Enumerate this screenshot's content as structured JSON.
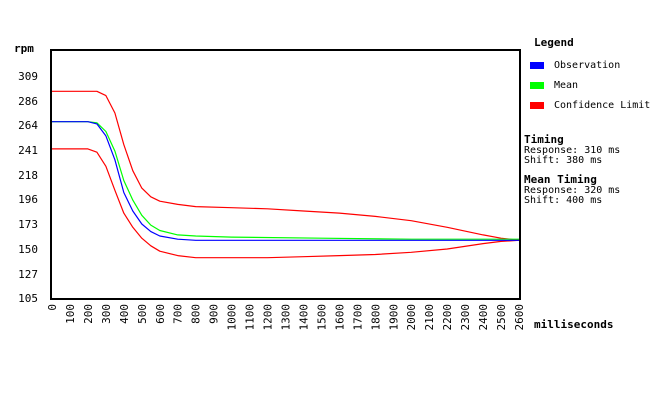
{
  "chart_data": {
    "type": "line",
    "ylabel": "rpm",
    "xlabel": "milliseconds",
    "xlim": [
      0,
      2600
    ],
    "ylim": [
      105,
      332
    ],
    "y_ticks": [
      105,
      127,
      150,
      173,
      196,
      218,
      241,
      264,
      286,
      309
    ],
    "x_ticks": [
      0,
      100,
      200,
      300,
      400,
      500,
      600,
      700,
      800,
      900,
      1000,
      1100,
      1200,
      1300,
      1400,
      1500,
      1600,
      1700,
      1800,
      1900,
      2000,
      2100,
      2200,
      2300,
      2400,
      2500,
      2600
    ],
    "grid": false,
    "legend_position": "right",
    "series": [
      {
        "name": "Observation",
        "color": "#0000ff",
        "points": [
          [
            0,
            267
          ],
          [
            100,
            267
          ],
          [
            200,
            267
          ],
          [
            250,
            265
          ],
          [
            300,
            254
          ],
          [
            350,
            232
          ],
          [
            400,
            202
          ],
          [
            450,
            185
          ],
          [
            500,
            173
          ],
          [
            550,
            166
          ],
          [
            600,
            162
          ],
          [
            700,
            159
          ],
          [
            800,
            158
          ],
          [
            1000,
            158
          ],
          [
            1500,
            158
          ],
          [
            2000,
            158
          ],
          [
            2500,
            158
          ],
          [
            2600,
            158
          ]
        ]
      },
      {
        "name": "Mean",
        "color": "#00ff00",
        "points": [
          [
            0,
            267
          ],
          [
            100,
            267
          ],
          [
            200,
            267
          ],
          [
            250,
            266
          ],
          [
            300,
            258
          ],
          [
            350,
            240
          ],
          [
            400,
            213
          ],
          [
            450,
            195
          ],
          [
            500,
            181
          ],
          [
            550,
            172
          ],
          [
            600,
            167
          ],
          [
            700,
            163
          ],
          [
            800,
            162
          ],
          [
            1000,
            161
          ],
          [
            1500,
            160
          ],
          [
            2000,
            159
          ],
          [
            2500,
            159
          ],
          [
            2600,
            159
          ]
        ]
      },
      {
        "name": "Confidence Limit",
        "color": "#ff0000",
        "points": [
          [
            0,
            295
          ],
          [
            100,
            295
          ],
          [
            200,
            295
          ],
          [
            250,
            295
          ],
          [
            300,
            291
          ],
          [
            350,
            275
          ],
          [
            400,
            246
          ],
          [
            450,
            222
          ],
          [
            500,
            206
          ],
          [
            550,
            198
          ],
          [
            600,
            194
          ],
          [
            700,
            191
          ],
          [
            800,
            189
          ],
          [
            1000,
            188
          ],
          [
            1200,
            187
          ],
          [
            1400,
            185
          ],
          [
            1600,
            183
          ],
          [
            1800,
            180
          ],
          [
            2000,
            176
          ],
          [
            2200,
            170
          ],
          [
            2400,
            163
          ],
          [
            2500,
            160
          ],
          [
            2600,
            158
          ]
        ]
      },
      {
        "name": "Confidence Limit",
        "color": "#ff0000",
        "points": [
          [
            0,
            242
          ],
          [
            100,
            242
          ],
          [
            200,
            242
          ],
          [
            250,
            239
          ],
          [
            300,
            226
          ],
          [
            350,
            204
          ],
          [
            400,
            183
          ],
          [
            450,
            170
          ],
          [
            500,
            160
          ],
          [
            550,
            153
          ],
          [
            600,
            148
          ],
          [
            700,
            144
          ],
          [
            800,
            142
          ],
          [
            1000,
            142
          ],
          [
            1200,
            142
          ],
          [
            1400,
            143
          ],
          [
            1600,
            144
          ],
          [
            1800,
            145
          ],
          [
            2000,
            147
          ],
          [
            2200,
            150
          ],
          [
            2400,
            155
          ],
          [
            2500,
            157
          ],
          [
            2600,
            158
          ]
        ]
      }
    ]
  },
  "legend": {
    "title": "Legend",
    "items": [
      {
        "label": "Observation",
        "color": "#0000ff"
      },
      {
        "label": "Mean",
        "color": "#00ff00"
      },
      {
        "label": "Confidence Limit",
        "color": "#ff0000"
      }
    ]
  },
  "timing": {
    "title": "Timing",
    "response": "Response: 310 ms",
    "shift": "Shift: 380 ms"
  },
  "mean_timing": {
    "title": "Mean Timing",
    "response": "Response: 320 ms",
    "shift": "Shift: 400 ms"
  }
}
